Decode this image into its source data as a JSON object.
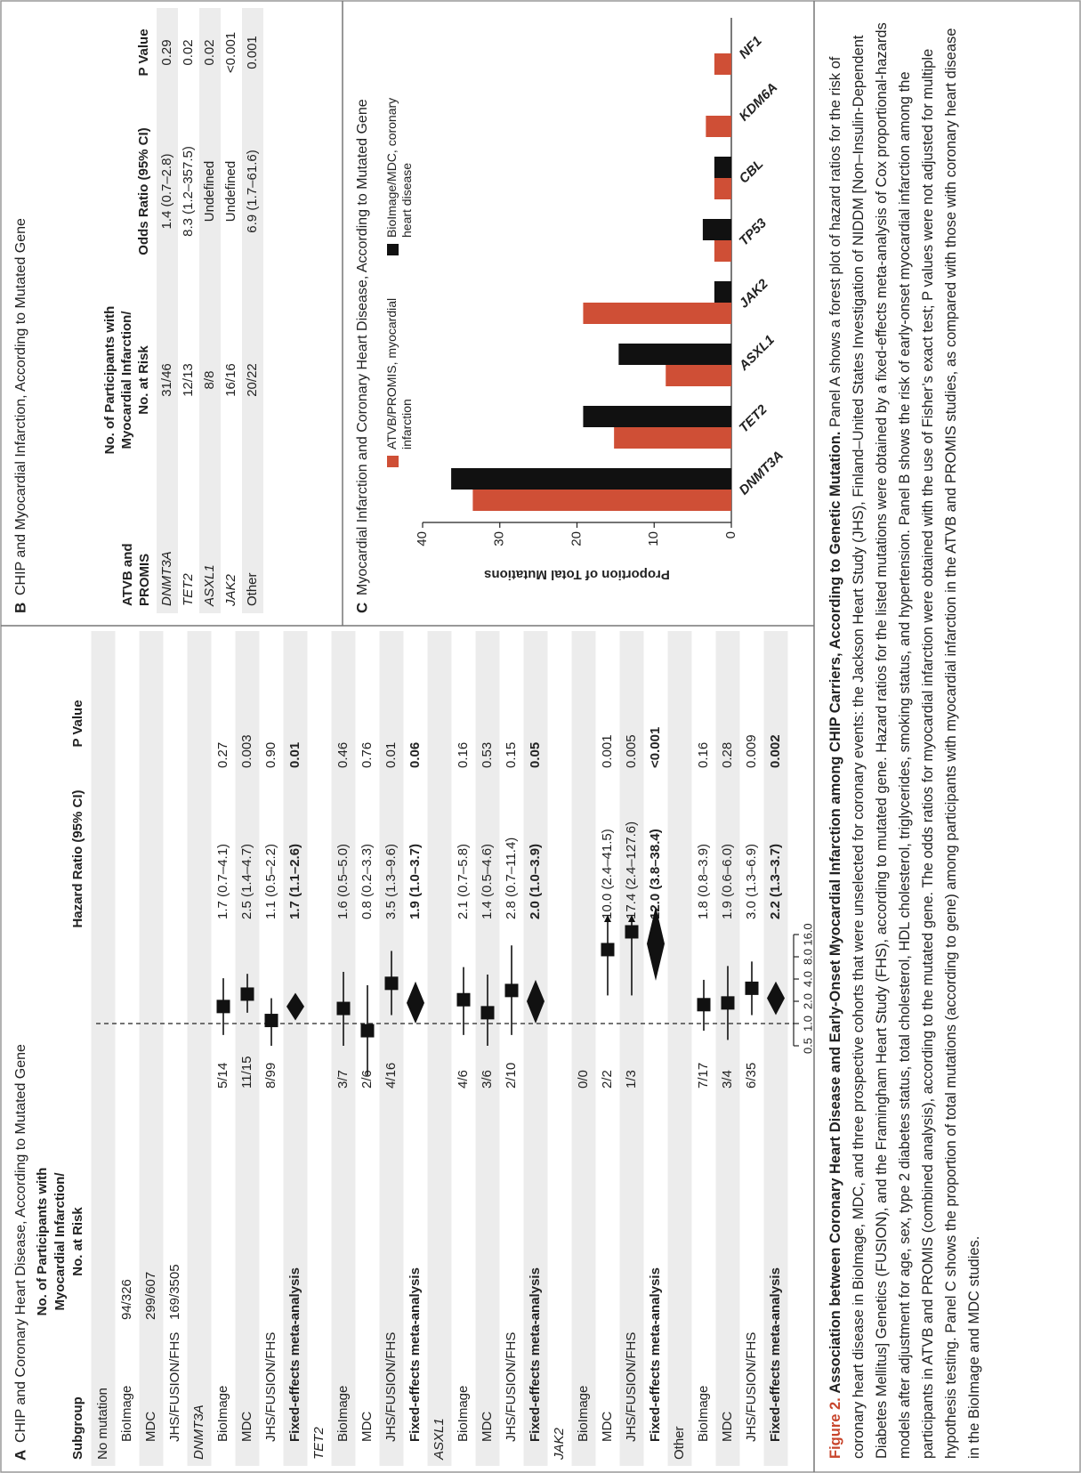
{
  "panel_a": {
    "label": "A",
    "title": "CHIP and Coronary Heart Disease, According to Mutated Gene",
    "headers": {
      "subgroup": "Subgroup",
      "count": [
        "No. of Participants with",
        "Myocardial Infarction/",
        "No. at Risk"
      ],
      "hr": "Hazard Ratio (95% CI)",
      "p": "P Value"
    },
    "axis": {
      "xlim": [
        0.5,
        16
      ],
      "log": true,
      "xticks": [
        0.5,
        {
          "value": 1,
          "label": "1.0"
        },
        {
          "value": 2,
          "label": "2.0"
        },
        {
          "value": 4,
          "label": "4.0"
        },
        {
          "value": 8,
          "label": "8.0"
        },
        {
          "value": 16,
          "label": "16.0"
        }
      ]
    },
    "groups": [
      {
        "name": "No mutation",
        "rows": [
          {
            "name": "BioImage",
            "n": "94/326"
          },
          {
            "name": "MDC",
            "n": "299/607"
          },
          {
            "name": "JHS/FUSION/FHS",
            "n": "169/3505"
          }
        ]
      },
      {
        "name": "DNMT3A",
        "italic": true,
        "rows": [
          {
            "name": "BioImage",
            "n": "5/14",
            "hr": 1.7,
            "lo": 0.7,
            "hi": 4.1,
            "ci": "1.7 (0.7–4.1)",
            "p": "0.27"
          },
          {
            "name": "MDC",
            "n": "11/15",
            "hr": 2.5,
            "lo": 1.4,
            "hi": 4.7,
            "ci": "2.5 (1.4–4.7)",
            "p": "0.003"
          },
          {
            "name": "JHS/FUSION/FHS",
            "n": "8/99",
            "hr": 1.1,
            "lo": 0.5,
            "hi": 2.2,
            "ci": "1.1 (0.5–2.2)",
            "p": "0.90"
          },
          {
            "name": "Fixed-effects meta-analysis",
            "summary": true,
            "hr": 1.7,
            "lo": 1.1,
            "hi": 2.6,
            "ci": "1.7 (1.1–2.6)",
            "p": "0.01"
          }
        ]
      },
      {
        "name": "TET2",
        "italic": true,
        "rows": [
          {
            "name": "BioImage",
            "n": "3/7",
            "hr": 1.6,
            "lo": 0.5,
            "hi": 5.0,
            "ci": "1.6 (0.5–5.0)",
            "p": "0.46"
          },
          {
            "name": "MDC",
            "n": "2/6",
            "hr": 0.8,
            "lo": 0.2,
            "hi": 3.3,
            "ci": "0.8 (0.2–3.3)",
            "p": "0.76"
          },
          {
            "name": "JHS/FUSION/FHS",
            "n": "4/16",
            "hr": 3.5,
            "lo": 1.3,
            "hi": 9.6,
            "ci": "3.5 (1.3–9.6)",
            "p": "0.01"
          },
          {
            "name": "Fixed-effects meta-analysis",
            "summary": true,
            "hr": 1.9,
            "lo": 1.0,
            "hi": 3.7,
            "ci": "1.9 (1.0–3.7)",
            "p": "0.06"
          }
        ]
      },
      {
        "name": "ASXL1",
        "italic": true,
        "rows": [
          {
            "name": "BioImage",
            "n": "4/6",
            "hr": 2.1,
            "lo": 0.7,
            "hi": 5.8,
            "ci": "2.1 (0.7–5.8)",
            "p": "0.16"
          },
          {
            "name": "MDC",
            "n": "3/6",
            "hr": 1.4,
            "lo": 0.5,
            "hi": 4.6,
            "ci": "1.4 (0.5–4.6)",
            "p": "0.53"
          },
          {
            "name": "JHS/FUSION/FHS",
            "n": "2/10",
            "hr": 2.8,
            "lo": 0.7,
            "hi": 11.4,
            "ci": "2.8 (0.7–11.4)",
            "p": "0.15"
          },
          {
            "name": "Fixed-effects meta-analysis",
            "summary": true,
            "hr": 2.0,
            "lo": 1.0,
            "hi": 3.9,
            "ci": "2.0 (1.0–3.9)",
            "p": "0.05"
          }
        ]
      },
      {
        "name": "JAK2",
        "italic": true,
        "rows": [
          {
            "name": "BioImage",
            "n": "0/0"
          },
          {
            "name": "MDC",
            "n": "2/2",
            "hr": 10.0,
            "lo": 2.4,
            "hi": 41.5,
            "ci": "10.0 (2.4–41.5)",
            "p": "0.001"
          },
          {
            "name": "JHS/FUSION/FHS",
            "n": "1/3",
            "hr": 17.4,
            "lo": 2.4,
            "hi": 127.6,
            "ci": "17.4 (2.4–127.6)",
            "p": "0.005"
          },
          {
            "name": "Fixed-effects meta-analysis",
            "summary": true,
            "hr": 12.0,
            "lo": 3.8,
            "hi": 38.4,
            "ci": "12.0 (3.8–38.4)",
            "p": "<0.001"
          }
        ]
      },
      {
        "name": "Other",
        "rows": [
          {
            "name": "BioImage",
            "n": "7/17",
            "hr": 1.8,
            "lo": 0.8,
            "hi": 3.9,
            "ci": "1.8 (0.8–3.9)",
            "p": "0.16"
          },
          {
            "name": "MDC",
            "n": "3/4",
            "hr": 1.9,
            "lo": 0.6,
            "hi": 6.0,
            "ci": "1.9 (0.6–6.0)",
            "p": "0.28"
          },
          {
            "name": "JHS/FUSION/FHS",
            "n": "6/35",
            "hr": 3.0,
            "lo": 1.3,
            "hi": 6.9,
            "ci": "3.0 (1.3–6.9)",
            "p": "0.009"
          },
          {
            "name": "Fixed-effects meta-analysis",
            "summary": true,
            "hr": 2.2,
            "lo": 1.3,
            "hi": 3.7,
            "ci": "2.2 (1.3–3.7)",
            "p": "0.002"
          }
        ]
      }
    ]
  },
  "panel_b": {
    "label": "B",
    "title": "CHIP and Myocardial Infarction, According to Mutated Gene",
    "headers": {
      "gene": [
        "ATVB and",
        "PROMIS"
      ],
      "count": [
        "No. of Participants with",
        "Myocardial Infarction/",
        "No. at Risk"
      ],
      "or": "Odds Ratio (95% CI)",
      "p": "P Value"
    },
    "rows": [
      {
        "gene": "DNMT3A",
        "italic": true,
        "n": "31/46",
        "or": "1.4 (0.7–2.8)",
        "p": "0.29"
      },
      {
        "gene": "TET2",
        "italic": true,
        "n": "12/13",
        "or": "8.3 (1.2–357.5)",
        "p": "0.02"
      },
      {
        "gene": "ASXL1",
        "italic": true,
        "n": "8/8",
        "or": "Undefined",
        "p": "0.02"
      },
      {
        "gene": "JAK2",
        "italic": true,
        "n": "16/16",
        "or": "Undefined",
        "p": "<0.001"
      },
      {
        "gene": "Other",
        "n": "20/22",
        "or": "6.9 (1.7–61.6)",
        "p": "0.001"
      }
    ]
  },
  "chart_data": {
    "type": "bar",
    "label": "C",
    "title": "Myocardial Infarction and Coronary Heart Disease, According to Mutated Gene",
    "ylabel": "Proportion of Total Mutations",
    "categories": [
      "DNMT3A",
      "TET2",
      "ASXL1",
      "JAK2",
      "TP53",
      "CBL",
      "KDM6A",
      "NF1"
    ],
    "series": [
      {
        "name": "ATVB/PROMIS, myocardial infarction",
        "color": "#cf4f36",
        "values": [
          33.5,
          15.2,
          8.5,
          19.2,
          2.2,
          2.2,
          3.3,
          2.2
        ]
      },
      {
        "name": "BioImage/MDC, coronary heart disease",
        "color": "#111111",
        "values": [
          36.3,
          19.2,
          14.6,
          2.2,
          3.7,
          2.2,
          0,
          0
        ]
      }
    ],
    "ylim": [
      0,
      40
    ],
    "yticks": [
      0,
      10,
      20,
      30,
      40
    ],
    "grid": false
  },
  "caption": {
    "label": "Figure 2.",
    "title": "Association between Coronary Heart Disease and Early-Onset Myocardial Infarction among CHIP Carriers, According to Genetic Mutation.",
    "body": "Panel A shows a forest plot of hazard ratios for the risk of coronary heart disease in BioImage, MDC, and three prospective cohorts that were unselected for coronary events: the Jackson Heart Study (JHS), Finland–United States Investigation of NIDDM [Non–Insulin-Dependent Diabetes Mellitus] Genetics (FUSION), and the Framingham Heart Study (FHS), according to mutated gene. Hazard ratios for the listed mutations were obtained by a fixed-effects meta-analysis of Cox proportional-hazards models after adjustment for age, sex, type 2 diabetes status, total cholesterol, HDL cholesterol, triglycerides, smoking status, and hypertension. Panel B shows the risk of early-onset myocardial infarction among the participants in ATVB and PROMIS (combined analysis), according to the mutated gene. The odds ratios for myocardial infarction were obtained with the use of Fisher’s exact test; P values were not adjusted for multiple hypothesis testing. Panel C shows the proportion of total mutations (according to gene) among participants with myocardial infarction in the ATVB and PROMIS studies, as compared with those with coronary heart disease in the BioImage and MDC studies."
  }
}
